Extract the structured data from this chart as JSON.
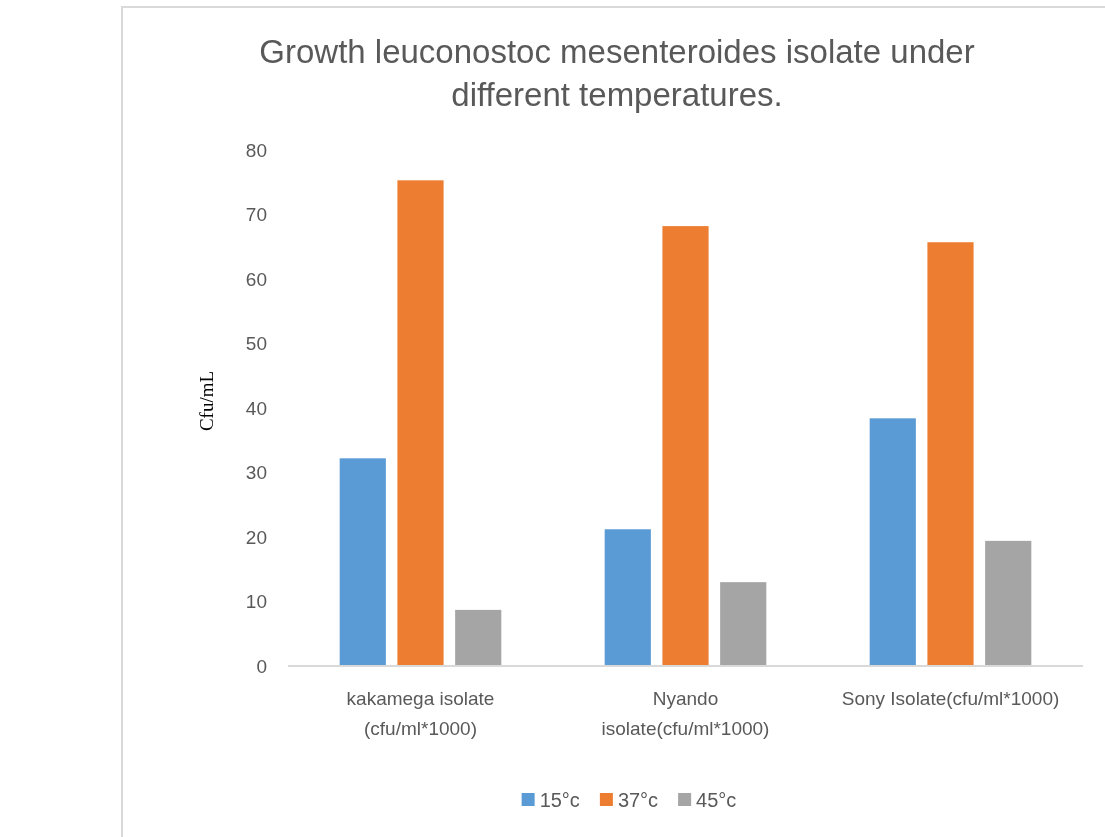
{
  "chart_data": {
    "type": "bar",
    "title": "Growth leuconostoc mesenteroides isolate under different temperatures.",
    "ylabel": "Cfu/mL",
    "categories": [
      "kakamega isolate (cfu/ml*1000)",
      "Nyando isolate(cfu/ml*1000)",
      "Sony Isolate(cfu/ml*1000)"
    ],
    "series": [
      {
        "name": "15°c",
        "color": "#5b9bd5",
        "values": [
          32.2,
          21.2,
          38.4
        ]
      },
      {
        "name": "37°c",
        "color": "#ed7d31",
        "values": [
          75.3,
          68.2,
          65.7
        ]
      },
      {
        "name": "45°c",
        "color": "#a5a5a5",
        "values": [
          8.7,
          13.0,
          19.4
        ]
      }
    ],
    "ylim": [
      0,
      80
    ],
    "yticks": [
      0,
      10,
      20,
      30,
      40,
      50,
      60,
      70,
      80
    ],
    "legend": "bottom"
  }
}
